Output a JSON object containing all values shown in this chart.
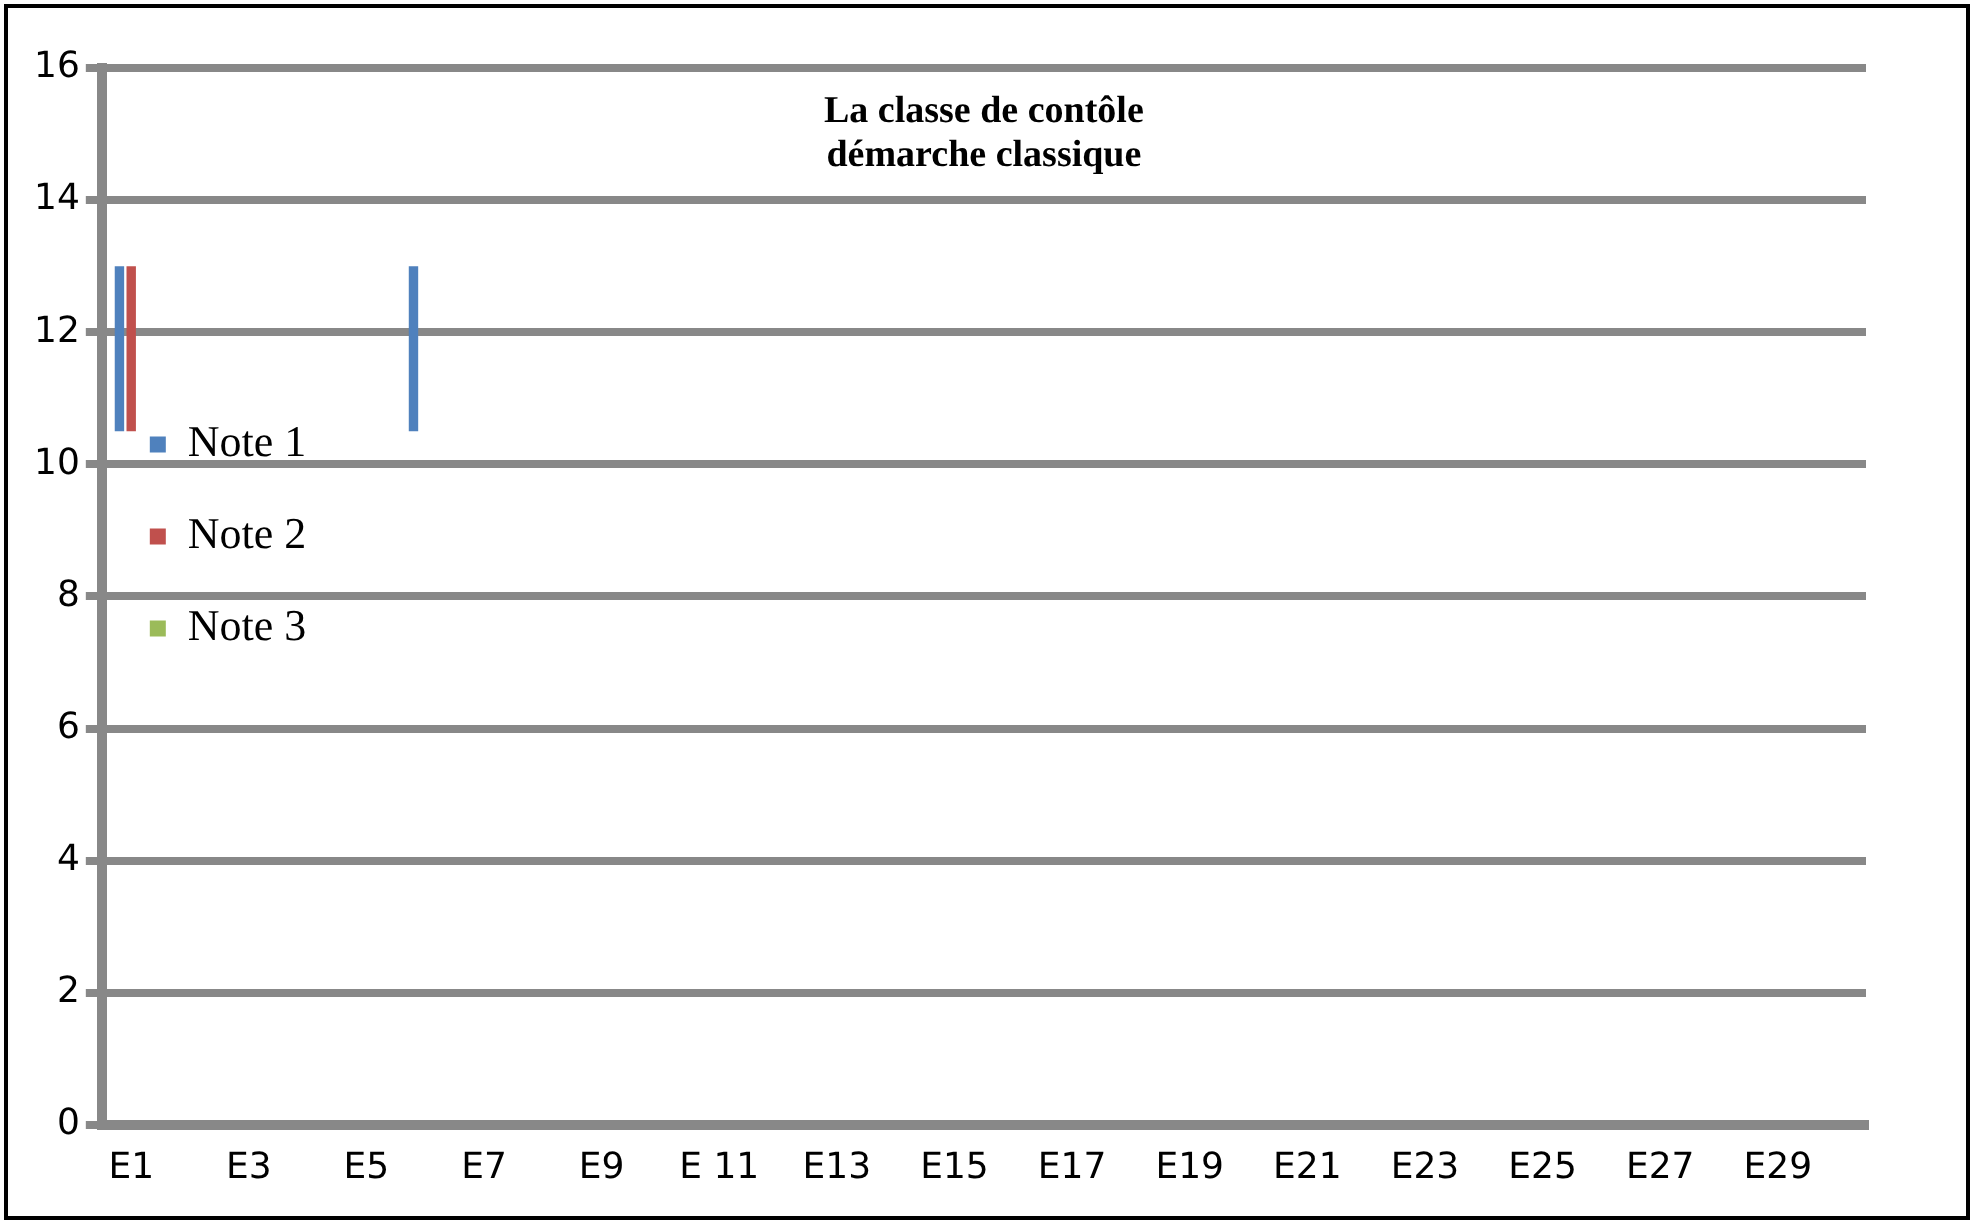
{
  "chart_data": {
    "type": "bar",
    "title": "La classe de contôle\ndémarche classique",
    "categories": [
      "E1",
      null,
      "E3",
      null,
      "E5",
      null,
      "E7",
      null,
      "E9",
      null,
      "E 11",
      null,
      "E13",
      null,
      "E15",
      null,
      "E17",
      null,
      "E19",
      null,
      "E21",
      null,
      "E23",
      null,
      "E25",
      null,
      "E27",
      null,
      "E29",
      null
    ],
    "series": [
      {
        "name": "Note 1",
        "color": "#4f81bd",
        "values": [
          2.5,
          null,
          null,
          null,
          null,
          2.5,
          null,
          null,
          null,
          null,
          null,
          null,
          null,
          null,
          null,
          null,
          null,
          null,
          null,
          null,
          null,
          null,
          null,
          null,
          null,
          null,
          null,
          null,
          null,
          null
        ],
        "base": [
          10.5,
          null,
          null,
          null,
          null,
          10.5,
          null,
          null,
          null,
          null,
          null,
          null,
          null,
          null,
          null,
          null,
          null,
          null,
          null,
          null,
          null,
          null,
          null,
          null,
          null,
          null,
          null,
          null,
          null,
          null
        ]
      },
      {
        "name": "Note 2",
        "color": "#c0504d",
        "values": [
          2.5,
          null,
          null,
          null,
          null,
          null,
          null,
          null,
          null,
          null,
          null,
          null,
          null,
          null,
          null,
          null,
          null,
          null,
          null,
          null,
          null,
          null,
          null,
          null,
          null,
          null,
          null,
          null,
          null,
          null
        ],
        "base": [
          10.5,
          null,
          null,
          null,
          null,
          null,
          null,
          null,
          null,
          null,
          null,
          null,
          null,
          null,
          null,
          null,
          null,
          null,
          null,
          null,
          null,
          null,
          null,
          null,
          null,
          null,
          null,
          null,
          null,
          null
        ]
      },
      {
        "name": "Note 3",
        "color": "#9bbb59",
        "values": [
          null,
          null,
          null,
          null,
          null,
          null,
          null,
          null,
          null,
          null,
          null,
          null,
          null,
          null,
          null,
          null,
          null,
          null,
          null,
          null,
          null,
          null,
          null,
          null,
          null,
          null,
          null,
          null,
          null,
          null
        ]
      }
    ],
    "ylim": [
      0,
      16
    ],
    "yticks": [
      0,
      2,
      4,
      6,
      8,
      10,
      12,
      14,
      16
    ],
    "grid": "y",
    "legend": "top"
  }
}
